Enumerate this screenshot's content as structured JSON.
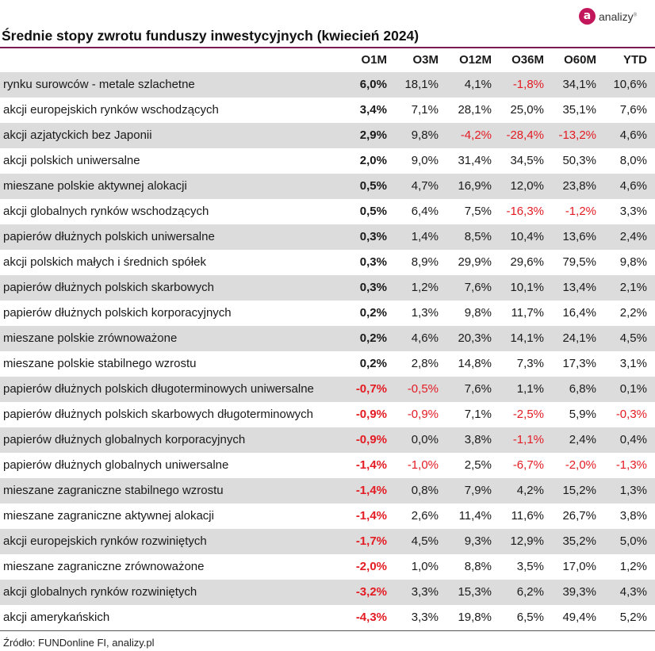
{
  "logo": {
    "mark": "a",
    "text": "analizy",
    "sup": "®"
  },
  "title": "Średnie stopy zwrotu funduszy inwestycyjnych (kwiecień 2024)",
  "columns": [
    "O1M",
    "O3M",
    "O12M",
    "O36M",
    "O60M",
    "YTD"
  ],
  "rows": [
    {
      "name": "rynku surowców - metale szlachetne",
      "values": [
        "6,0%",
        "18,1%",
        "4,1%",
        "-1,8%",
        "34,1%",
        "10,6%"
      ]
    },
    {
      "name": "akcji europejskich rynków wschodzących",
      "values": [
        "3,4%",
        "7,1%",
        "28,1%",
        "25,0%",
        "35,1%",
        "7,6%"
      ]
    },
    {
      "name": "akcji azjatyckich bez Japonii",
      "values": [
        "2,9%",
        "9,8%",
        "-4,2%",
        "-28,4%",
        "-13,2%",
        "4,6%"
      ]
    },
    {
      "name": "akcji polskich uniwersalne",
      "values": [
        "2,0%",
        "9,0%",
        "31,4%",
        "34,5%",
        "50,3%",
        "8,0%"
      ]
    },
    {
      "name": "mieszane polskie aktywnej alokacji",
      "values": [
        "0,5%",
        "4,7%",
        "16,9%",
        "12,0%",
        "23,8%",
        "4,6%"
      ]
    },
    {
      "name": "akcji globalnych rynków wschodzących",
      "values": [
        "0,5%",
        "6,4%",
        "7,5%",
        "-16,3%",
        "-1,2%",
        "3,3%"
      ]
    },
    {
      "name": "papierów dłużnych polskich uniwersalne",
      "values": [
        "0,3%",
        "1,4%",
        "8,5%",
        "10,4%",
        "13,6%",
        "2,4%"
      ]
    },
    {
      "name": "akcji polskich małych i średnich spółek",
      "values": [
        "0,3%",
        "8,9%",
        "29,9%",
        "29,6%",
        "79,5%",
        "9,8%"
      ]
    },
    {
      "name": "papierów dłużnych polskich skarbowych",
      "values": [
        "0,3%",
        "1,2%",
        "7,6%",
        "10,1%",
        "13,4%",
        "2,1%"
      ]
    },
    {
      "name": "papierów dłużnych polskich korporacyjnych",
      "values": [
        "0,2%",
        "1,3%",
        "9,8%",
        "11,7%",
        "16,4%",
        "2,2%"
      ]
    },
    {
      "name": "mieszane polskie zrównoważone",
      "values": [
        "0,2%",
        "4,6%",
        "20,3%",
        "14,1%",
        "24,1%",
        "4,5%"
      ]
    },
    {
      "name": "mieszane polskie stabilnego wzrostu",
      "values": [
        "0,2%",
        "2,8%",
        "14,8%",
        "7,3%",
        "17,3%",
        "3,1%"
      ]
    },
    {
      "name": "papierów dłużnych polskich długoterminowych uniwersalne",
      "values": [
        "-0,7%",
        "-0,5%",
        "7,6%",
        "1,1%",
        "6,8%",
        "0,1%"
      ]
    },
    {
      "name": "papierów dłużnych polskich skarbowych długoterminowych",
      "values": [
        "-0,9%",
        "-0,9%",
        "7,1%",
        "-2,5%",
        "5,9%",
        "-0,3%"
      ]
    },
    {
      "name": "papierów dłużnych globalnych korporacyjnych",
      "values": [
        "-0,9%",
        "0,0%",
        "3,8%",
        "-1,1%",
        "2,4%",
        "0,4%"
      ]
    },
    {
      "name": "papierów dłużnych globalnych uniwersalne",
      "values": [
        "-1,4%",
        "-1,0%",
        "2,5%",
        "-6,7%",
        "-2,0%",
        "-1,3%"
      ]
    },
    {
      "name": "mieszane zagraniczne stabilnego wzrostu",
      "values": [
        "-1,4%",
        "0,8%",
        "7,9%",
        "4,2%",
        "15,2%",
        "1,3%"
      ]
    },
    {
      "name": "mieszane zagraniczne aktywnej alokacji",
      "values": [
        "-1,4%",
        "2,6%",
        "11,4%",
        "11,6%",
        "26,7%",
        "3,8%"
      ]
    },
    {
      "name": "akcji europejskich rynków rozwiniętych",
      "values": [
        "-1,7%",
        "4,5%",
        "9,3%",
        "12,9%",
        "35,2%",
        "5,0%"
      ]
    },
    {
      "name": "mieszane zagraniczne zrównoważone",
      "values": [
        "-2,0%",
        "1,0%",
        "8,8%",
        "3,5%",
        "17,0%",
        "1,2%"
      ]
    },
    {
      "name": "akcji globalnych rynków rozwiniętych",
      "values": [
        "-3,2%",
        "3,3%",
        "15,3%",
        "6,2%",
        "39,3%",
        "4,3%"
      ]
    },
    {
      "name": "akcji amerykańskich",
      "values": [
        "-4,3%",
        "3,3%",
        "19,8%",
        "6,5%",
        "49,4%",
        "5,2%"
      ]
    }
  ],
  "source": "Źródło: FUNDonline FI, analizy.pl",
  "colors": {
    "negative": "#e31b23",
    "accent": "#7a1b52",
    "row_shade": "#dcdcdc",
    "logo": "#c2185b"
  }
}
